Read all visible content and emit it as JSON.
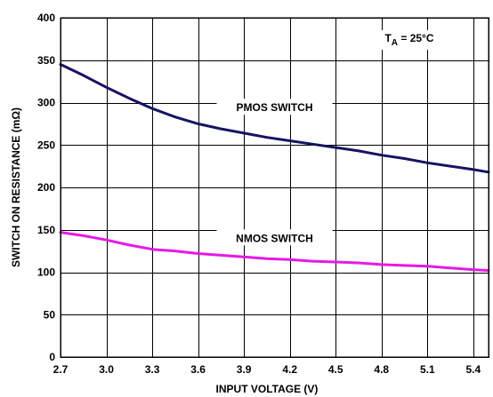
{
  "chart_data": {
    "type": "line",
    "xlabel": "INPUT VOLTAGE (V)",
    "ylabel": "SWITCH ON RESISTANCE (mΩ)",
    "xlim": [
      2.7,
      5.5
    ],
    "ylim": [
      0,
      400
    ],
    "xticks": [
      "2.7",
      "3.0",
      "3.3",
      "3.6",
      "3.9",
      "4.2",
      "4.5",
      "4.8",
      "5.1",
      "5.4"
    ],
    "yticks": [
      "0",
      "50",
      "100",
      "150",
      "200",
      "250",
      "300",
      "350",
      "400"
    ],
    "grid": true,
    "annotation": {
      "main": "T",
      "sub": "A",
      "rest": " = 25°C"
    },
    "series": [
      {
        "name": "PMOS SWITCH",
        "color": "#141464",
        "x": [
          2.7,
          2.85,
          3.0,
          3.15,
          3.3,
          3.45,
          3.6,
          3.75,
          3.9,
          4.05,
          4.2,
          4.35,
          4.5,
          4.65,
          4.8,
          4.95,
          5.1,
          5.25,
          5.4,
          5.5
        ],
        "y": [
          345,
          332,
          318,
          305,
          293,
          283,
          275,
          269,
          264,
          259,
          255,
          251,
          247,
          243,
          238,
          234,
          229,
          225,
          221,
          218
        ]
      },
      {
        "name": "NMOS SWITCH",
        "color": "#e619e6",
        "x": [
          2.7,
          2.85,
          3.0,
          3.15,
          3.3,
          3.45,
          3.6,
          3.75,
          3.9,
          4.05,
          4.2,
          4.35,
          4.5,
          4.65,
          4.8,
          4.95,
          5.1,
          5.25,
          5.4,
          5.5
        ],
        "y": [
          147,
          143,
          138,
          132,
          127,
          125,
          122,
          120,
          118,
          116,
          115,
          113,
          112,
          111,
          109,
          108,
          107,
          105,
          103,
          102
        ]
      }
    ]
  }
}
